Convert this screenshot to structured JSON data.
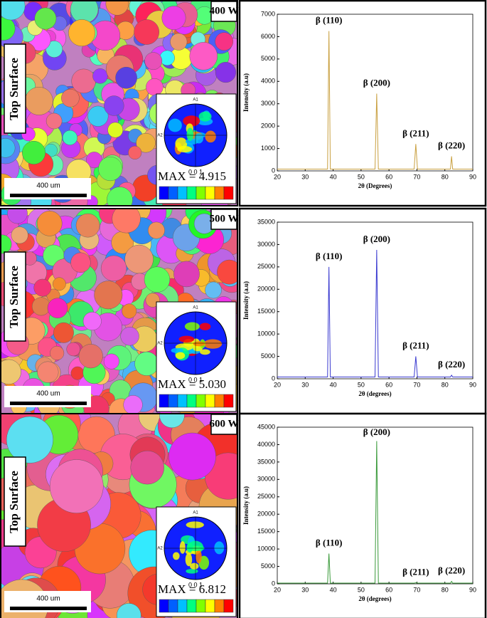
{
  "panels": [
    {
      "label": "Top Surface",
      "scale_bar": "400 um",
      "pole_figure": {
        "axes": [
          "A1",
          "A2"
        ],
        "plane": "0 0 1",
        "max": "MAX = 4.915"
      }
    },
    {
      "label": "Top Surface",
      "scale_bar": "400 um",
      "pole_figure": {
        "axes": [
          "A1",
          "A2"
        ],
        "plane": "0 0 1",
        "max": "MAX = 5.030"
      }
    },
    {
      "label": "Top Surface",
      "scale_bar": "400 um",
      "pole_figure": {
        "axes": [
          "A1",
          "A2"
        ],
        "plane": "0 0 1",
        "max": "MAX = 6.812"
      }
    }
  ],
  "chart_data": [
    {
      "type": "line",
      "title": "400 W",
      "xlabel": "2θ (Degrees)",
      "ylabel": "Intensity (a.u)",
      "color": "#c9a040",
      "x": [
        20,
        38,
        38.5,
        39,
        55,
        55.6,
        56.2,
        69,
        69.6,
        70.2,
        82,
        82.4,
        82.8,
        90
      ],
      "values": [
        80,
        80,
        6250,
        80,
        80,
        3450,
        80,
        80,
        1200,
        80,
        80,
        650,
        80,
        80
      ],
      "xlim": [
        20,
        90
      ],
      "xticks": [
        20,
        30,
        40,
        50,
        60,
        70,
        80,
        90
      ],
      "ylim": [
        0,
        7000
      ],
      "yticks": [
        0,
        1000,
        2000,
        3000,
        4000,
        5000,
        6000,
        7000
      ],
      "annotations": [
        {
          "text": "β (110)",
          "x": 38.5,
          "y": 6250
        },
        {
          "text": "β (200)",
          "x": 55.6,
          "y": 3450
        },
        {
          "text": "β (211)",
          "x": 69.6,
          "y": 1200
        },
        {
          "text": "β (220)",
          "x": 82.4,
          "y": 650
        }
      ]
    },
    {
      "type": "line",
      "title": "500 W",
      "xlabel": "2θ (degrees)",
      "ylabel": "Intensity (a.u)",
      "color": "#3a3ad0",
      "x": [
        20,
        38,
        38.5,
        39,
        55,
        55.6,
        56.2,
        69,
        69.6,
        70.2,
        82,
        82.4,
        82.8,
        90
      ],
      "values": [
        400,
        400,
        25000,
        400,
        400,
        28800,
        400,
        400,
        5000,
        400,
        400,
        800,
        400,
        400
      ],
      "xlim": [
        20,
        90
      ],
      "xticks": [
        20,
        30,
        40,
        50,
        60,
        70,
        80,
        90
      ],
      "ylim": [
        0,
        35000
      ],
      "yticks": [
        0,
        5000,
        10000,
        15000,
        20000,
        25000,
        30000,
        35000
      ],
      "annotations": [
        {
          "text": "β (110)",
          "x": 38.5,
          "y": 25000
        },
        {
          "text": "β (200)",
          "x": 55.6,
          "y": 28800
        },
        {
          "text": "β (211)",
          "x": 69.6,
          "y": 5000
        },
        {
          "text": "β (220)",
          "x": 82.4,
          "y": 800
        }
      ]
    },
    {
      "type": "line",
      "title": "600 W",
      "xlabel": "2θ (degrees)",
      "ylabel": "Intensity (a.u)",
      "color": "#3a9a3a",
      "x": [
        20,
        38,
        38.5,
        39,
        55,
        55.6,
        56.2,
        69,
        69.6,
        70.2,
        82,
        82.4,
        82.8,
        90
      ],
      "values": [
        200,
        200,
        8700,
        200,
        200,
        41000,
        200,
        200,
        300,
        200,
        200,
        700,
        200,
        200
      ],
      "xlim": [
        20,
        90
      ],
      "xticks": [
        20,
        30,
        40,
        50,
        60,
        70,
        80,
        90
      ],
      "ylim": [
        0,
        45000
      ],
      "yticks": [
        0,
        5000,
        10000,
        15000,
        20000,
        25000,
        30000,
        35000,
        40000,
        45000
      ],
      "annotations": [
        {
          "text": "β (110)",
          "x": 38.5,
          "y": 8700
        },
        {
          "text": "β (200)",
          "x": 55.6,
          "y": 41000
        },
        {
          "text": "β (211)",
          "x": 69.6,
          "y": 300
        },
        {
          "text": "β (220)",
          "x": 82.4,
          "y": 700
        }
      ]
    }
  ]
}
